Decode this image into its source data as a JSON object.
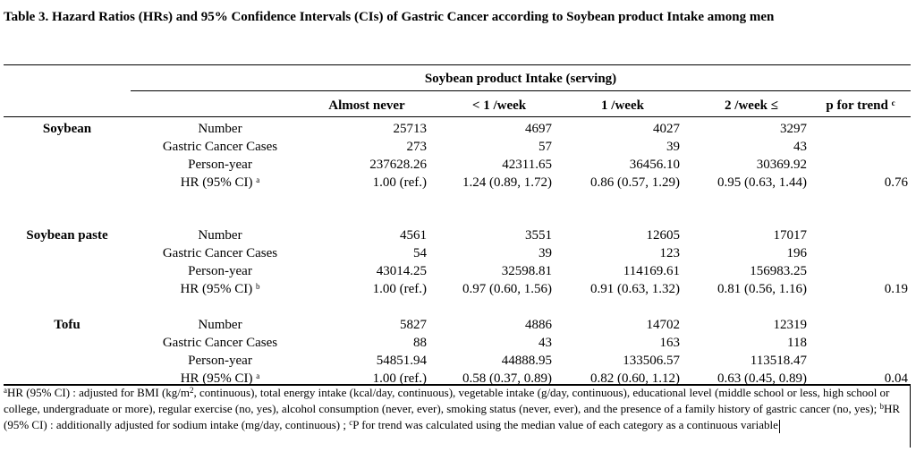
{
  "title": "Table 3. Hazard Ratios (HRs) and 95% Confidence Intervals (CIs) of Gastric Cancer according to Soybean product Intake among men",
  "span_header": "Soybean product Intake (serving)",
  "columns": {
    "almost_never": "Almost never",
    "lt1": "< 1 /week",
    "w1": "1 /week",
    "w2": "2 /week  ≤",
    "ptrend": "p for trend",
    "ptrend_sup": "c"
  },
  "groups": [
    {
      "name": "Soybean",
      "rows": [
        {
          "label": "Number",
          "sup": "",
          "v": [
            "25713",
            "4697",
            "4027",
            "3297"
          ],
          "p": ""
        },
        {
          "label": "Gastric Cancer Cases",
          "sup": "",
          "v": [
            "273",
            "57",
            "39",
            "43"
          ],
          "p": ""
        },
        {
          "label": "Person-year",
          "sup": "",
          "v": [
            "237628.26",
            "42311.65",
            "36456.10",
            "30369.92"
          ],
          "p": ""
        },
        {
          "label": "HR (95% CI)",
          "sup": "a",
          "v": [
            "1.00 (ref.)",
            "1.24 (0.89, 1.72)",
            "0.86 (0.57, 1.29)",
            "0.95 (0.63, 1.44)"
          ],
          "p": "0.76"
        }
      ]
    },
    {
      "name": "Soybean paste",
      "rows": [
        {
          "label": "Number",
          "sup": "",
          "v": [
            "4561",
            "3551",
            "12605",
            "17017"
          ],
          "p": ""
        },
        {
          "label": "Gastric Cancer Cases",
          "sup": "",
          "v": [
            "54",
            "39",
            "123",
            "196"
          ],
          "p": ""
        },
        {
          "label": "Person-year",
          "sup": "",
          "v": [
            "43014.25",
            "32598.81",
            "114169.61",
            "156983.25"
          ],
          "p": ""
        },
        {
          "label": "HR (95% CI)",
          "sup": "b",
          "v": [
            "1.00 (ref.)",
            "0.97 (0.60, 1.56)",
            "0.91 (0.63, 1.32)",
            "0.81 (0.56, 1.16)"
          ],
          "p": "0.19"
        }
      ]
    },
    {
      "name": "Tofu",
      "rows": [
        {
          "label": "Number",
          "sup": "",
          "v": [
            "5827",
            "4886",
            "14702",
            "12319"
          ],
          "p": ""
        },
        {
          "label": "Gastric Cancer Cases",
          "sup": "",
          "v": [
            "88",
            "43",
            "163",
            "118"
          ],
          "p": ""
        },
        {
          "label": "Person-year",
          "sup": "",
          "v": [
            "54851.94",
            "44888.95",
            "133506.57",
            "113518.47"
          ],
          "p": ""
        },
        {
          "label": "HR (95% CI)",
          "sup": "a",
          "v": [
            "1.00 (ref.)",
            "0.58 (0.37, 0.89)",
            "0.82 (0.60, 1.12)",
            "0.63 (0.45, 0.89)"
          ],
          "p": "0.04"
        }
      ]
    }
  ],
  "footnote": {
    "a_mark": "a",
    "a_text": "HR (95% CI) : adjusted for BMI (kg/m",
    "a_sup2": "2",
    "a_rest": ", continuous), total energy intake (kcal/day, continuous), vegetable intake (g/day, continuous), educational level (middle school or less, high school or college, undergraduate or more), regular exercise (no, yes), alcohol consumption (never, ever), smoking status (never, ever), and the presence of a family history of gastric cancer (no, yes); ",
    "b_mark": "b",
    "b_text": "HR (95% CI) : additionally adjusted for sodium intake (mg/day, continuous) ; ",
    "c_mark": "c",
    "c_text": "P for trend was calculated using the median value of each category as a continuous variable"
  }
}
